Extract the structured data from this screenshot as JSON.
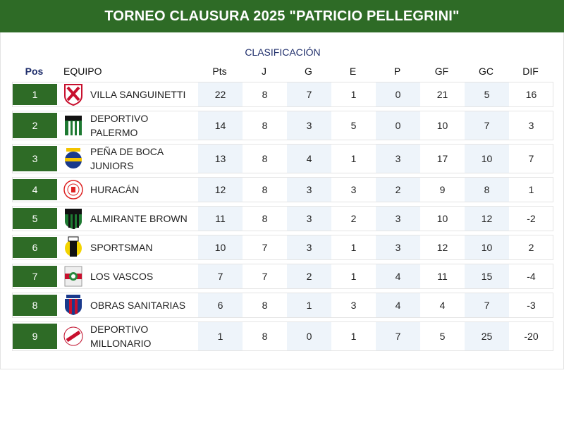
{
  "header": {
    "title": "TORNEO CLAUSURA 2025 \"PATRICIO PELLEGRINI\""
  },
  "table": {
    "subtitle": "CLASIFICACIÓN",
    "columns": {
      "pos": "Pos",
      "team": "EQUIPO",
      "pts": "Pts",
      "j": "J",
      "g": "G",
      "e": "E",
      "p": "P",
      "gf": "GF",
      "gc": "GC",
      "dif": "DIF"
    },
    "rows": [
      {
        "pos": "1",
        "team": "VILLA SANGUINETTI",
        "crest": "red-white-stripes-crest-icon",
        "pts": "22",
        "j": "8",
        "g": "7",
        "e": "1",
        "p": "0",
        "gf": "21",
        "gc": "5",
        "dif": "16"
      },
      {
        "pos": "2",
        "team": "DEPORTIVO PALERMO",
        "crest": "green-white-stripes-crest-icon",
        "pts": "14",
        "j": "8",
        "g": "3",
        "e": "5",
        "p": "0",
        "gf": "10",
        "gc": "7",
        "dif": "3"
      },
      {
        "pos": "3",
        "team": "PEÑA DE BOCA JUNIORS",
        "crest": "blue-gold-crest-icon",
        "pts": "13",
        "j": "8",
        "g": "4",
        "e": "1",
        "p": "3",
        "gf": "17",
        "gc": "10",
        "dif": "7"
      },
      {
        "pos": "4",
        "team": "HURACÁN",
        "crest": "white-red-ring-crest-icon",
        "pts": "12",
        "j": "8",
        "g": "3",
        "e": "3",
        "p": "2",
        "gf": "9",
        "gc": "8",
        "dif": "1"
      },
      {
        "pos": "5",
        "team": "ALMIRANTE BROWN",
        "crest": "green-black-stripes-crest-icon",
        "pts": "11",
        "j": "8",
        "g": "3",
        "e": "2",
        "p": "3",
        "gf": "10",
        "gc": "12",
        "dif": "-2"
      },
      {
        "pos": "6",
        "team": "SPORTSMAN",
        "crest": "yellow-black-crest-icon",
        "pts": "10",
        "j": "7",
        "g": "3",
        "e": "1",
        "p": "3",
        "gf": "12",
        "gc": "10",
        "dif": "2"
      },
      {
        "pos": "7",
        "team": "LOS VASCOS",
        "crest": "red-green-crest-icon",
        "pts": "7",
        "j": "7",
        "g": "2",
        "e": "1",
        "p": "4",
        "gf": "11",
        "gc": "15",
        "dif": "-4"
      },
      {
        "pos": "8",
        "team": "OBRAS SANITARIAS",
        "crest": "blue-red-stripes-crest-icon",
        "pts": "6",
        "j": "8",
        "g": "1",
        "e": "3",
        "p": "4",
        "gf": "4",
        "gc": "7",
        "dif": "-3"
      },
      {
        "pos": "9",
        "team": "DEPORTIVO MILLONARIO",
        "crest": "white-red-diagonal-crest-icon",
        "pts": "1",
        "j": "8",
        "g": "0",
        "e": "1",
        "p": "7",
        "gf": "5",
        "gc": "25",
        "dif": "-20"
      }
    ]
  },
  "colors": {
    "header_bg": "#2e6b26",
    "position_bg": "#2e6b26",
    "stat_shade": "#eef4fa",
    "subtitle": "#1f2e6b"
  }
}
